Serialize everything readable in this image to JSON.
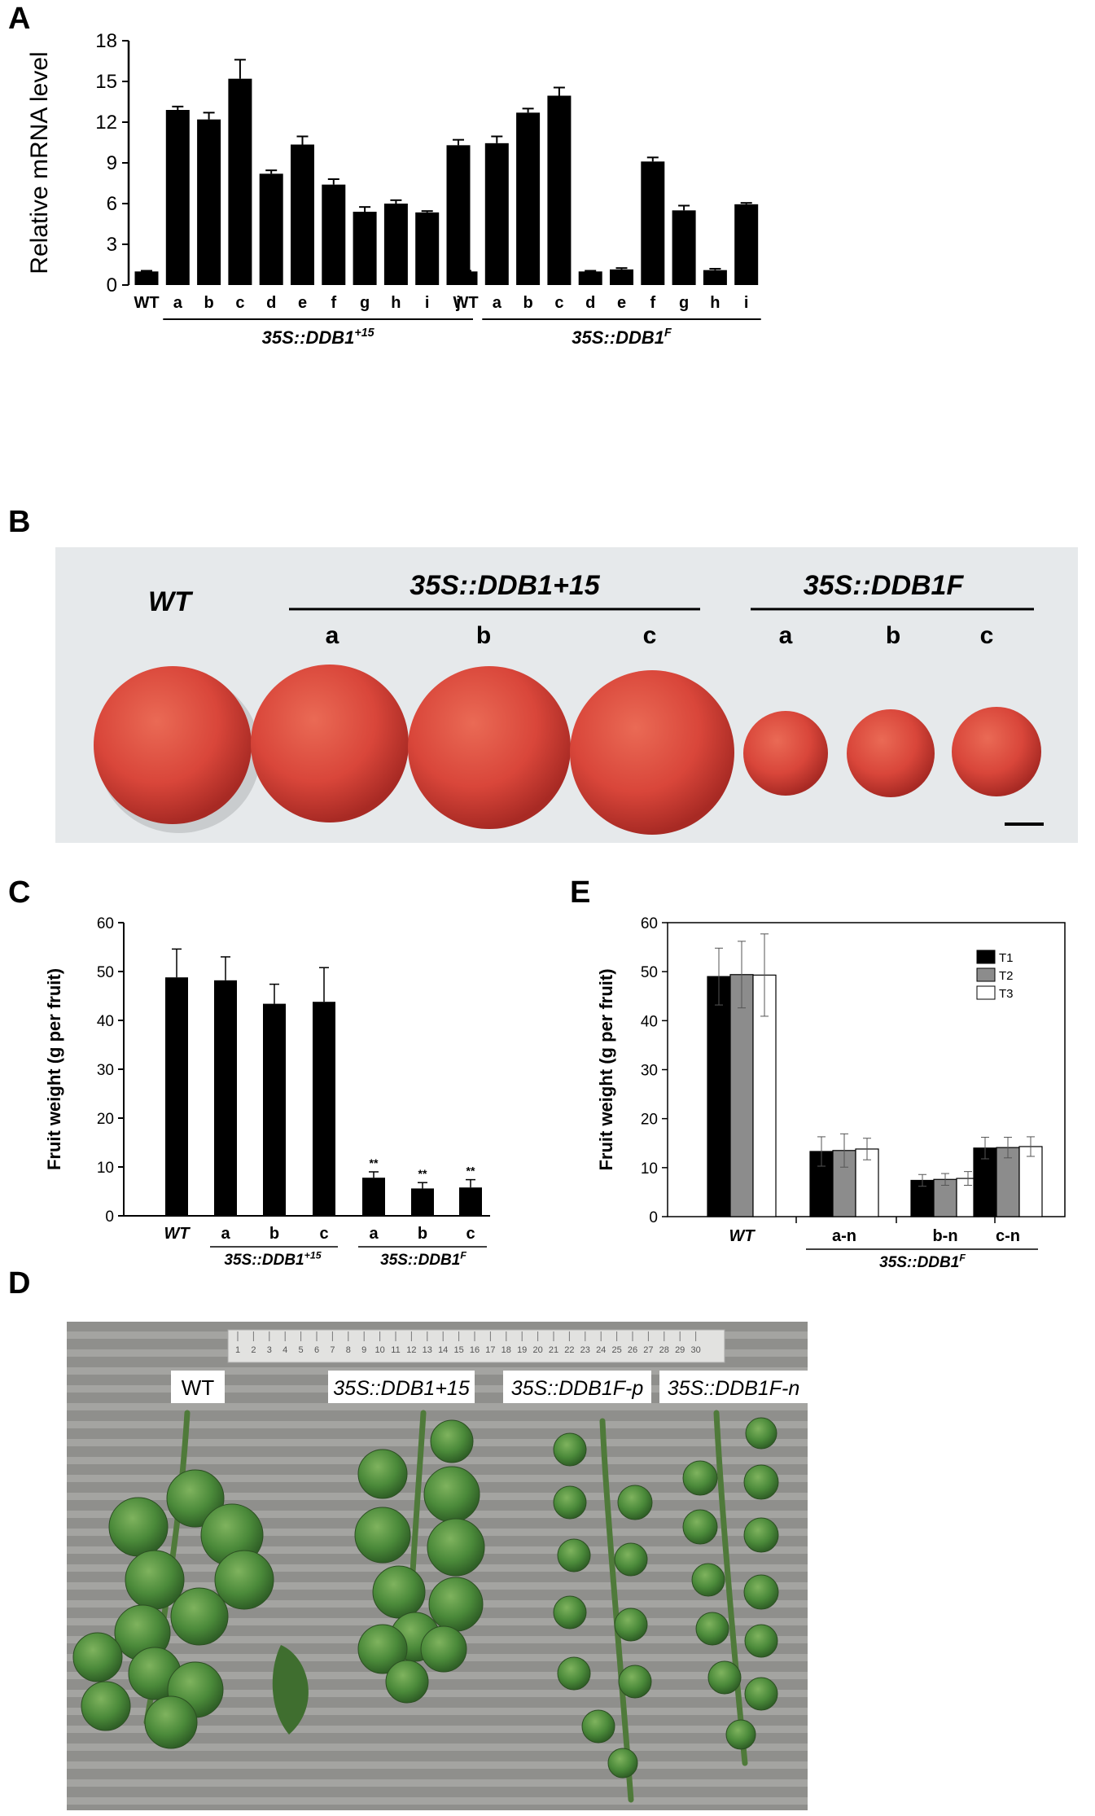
{
  "panels": {
    "A": {
      "letter": "A",
      "ylabel": "Relative mRNA level",
      "yticks": [
        "0",
        "3",
        "6",
        "9",
        "12",
        "15",
        "18"
      ],
      "group_labels": [
        "35S::DDB1+15",
        "35S::DDB1F"
      ]
    },
    "B": {
      "letter": "B",
      "wt_label": "WT",
      "group1_label": "35S::DDB1+15",
      "group2_label": "35S::DDB1F",
      "group1_lines": [
        "a",
        "b",
        "c"
      ],
      "group2_lines": [
        "a",
        "b",
        "c"
      ]
    },
    "C": {
      "letter": "C",
      "ylabel": "Fruit weight (g per fruit)",
      "yticks": [
        "0",
        "10",
        "20",
        "30",
        "40",
        "50",
        "60"
      ],
      "group_labels": [
        "35S::DDB1+15",
        "35S::DDB1F"
      ],
      "significance": "**"
    },
    "E": {
      "letter": "E",
      "ylabel": "Fruit weight (g per fruit)",
      "yticks": [
        "0",
        "10",
        "20",
        "30",
        "40",
        "50",
        "60"
      ],
      "group_label": "35S::DDB1F",
      "legend": [
        "T1",
        "T2",
        "T3"
      ]
    },
    "D": {
      "letter": "D",
      "labels": [
        "WT",
        "35S::DDB1+15",
        "35S::DDB1F-p",
        "35S::DDB1F-n"
      ],
      "ruler_numbers": [
        "1",
        "2",
        "3",
        "4",
        "5",
        "6",
        "7",
        "8",
        "9",
        "10",
        "11",
        "12",
        "13",
        "14",
        "15",
        "16",
        "17",
        "18",
        "19",
        "20",
        "21",
        "22",
        "23",
        "24",
        "25",
        "26",
        "27",
        "28",
        "29",
        "30"
      ]
    }
  },
  "colors": {
    "bar_black": "#000000",
    "bar_gray": "#8c8c8c",
    "bar_white": "#ffffff",
    "tomato": "#d9463a",
    "green": "#4b8a3a",
    "bg_B": "#e5e8ea",
    "bg_D": "#8f8f8c"
  },
  "chart_data": [
    {
      "panel": "A",
      "type": "bar",
      "ylabel": "Relative mRNA level",
      "ylim": [
        0,
        18
      ],
      "groups": [
        {
          "label": "35S::DDB1+15",
          "categories": [
            "WT",
            "a",
            "b",
            "c",
            "d",
            "e",
            "f",
            "g",
            "h",
            "i",
            "j"
          ],
          "values": [
            1.0,
            12.9,
            12.2,
            15.2,
            8.2,
            10.35,
            7.4,
            5.4,
            6.0,
            5.35,
            10.3
          ],
          "errors": [
            0.05,
            0.25,
            0.5,
            1.4,
            0.25,
            0.6,
            0.4,
            0.35,
            0.25,
            0.1,
            0.4
          ]
        },
        {
          "label": "35S::DDB1F",
          "categories": [
            "WT",
            "a",
            "b",
            "c",
            "d",
            "e",
            "f",
            "g",
            "h",
            "i"
          ],
          "values": [
            1.0,
            10.45,
            12.7,
            13.95,
            1.0,
            1.15,
            9.1,
            5.5,
            1.1,
            5.95
          ],
          "errors": [
            0.05,
            0.5,
            0.3,
            0.6,
            0.05,
            0.1,
            0.3,
            0.35,
            0.1,
            0.1
          ]
        }
      ]
    },
    {
      "panel": "C",
      "type": "bar",
      "ylabel": "Fruit weight (g per fruit)",
      "ylim": [
        0,
        60
      ],
      "categories": [
        "WT",
        "a",
        "b",
        "c",
        "a",
        "b",
        "c"
      ],
      "groups": [
        "",
        "35S::DDB1+15",
        "35S::DDB1+15",
        "35S::DDB1+15",
        "35S::DDB1F",
        "35S::DDB1F",
        "35S::DDB1F"
      ],
      "values": [
        48.8,
        48.2,
        43.4,
        43.8,
        7.8,
        5.6,
        5.8
      ],
      "errors": [
        5.8,
        4.8,
        4.0,
        7.0,
        1.2,
        1.2,
        1.6
      ],
      "significance": [
        "",
        "",
        "",
        "",
        "**",
        "**",
        "**"
      ]
    },
    {
      "panel": "E",
      "type": "bar",
      "ylabel": "Fruit weight (g per fruit)",
      "ylim": [
        0,
        60
      ],
      "categories": [
        "WT",
        "a-n",
        "b-n",
        "c-n"
      ],
      "series": [
        {
          "name": "T1",
          "values": [
            49.0,
            13.3,
            7.4,
            14.0
          ],
          "errors": [
            5.8,
            3.0,
            1.2,
            2.2
          ]
        },
        {
          "name": "T2",
          "values": [
            49.4,
            13.5,
            7.6,
            14.1
          ],
          "errors": [
            6.8,
            3.4,
            1.2,
            2.1
          ]
        },
        {
          "name": "T3",
          "values": [
            49.3,
            13.8,
            7.8,
            14.3
          ],
          "errors": [
            8.4,
            2.2,
            1.4,
            2.0
          ]
        }
      ]
    }
  ]
}
